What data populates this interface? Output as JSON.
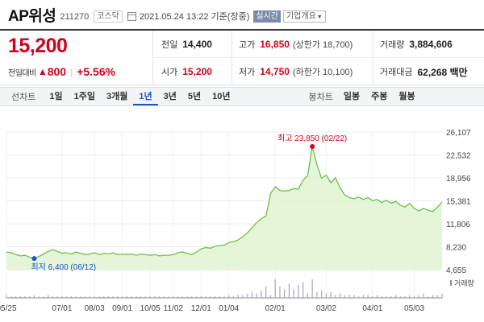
{
  "header": {
    "stock_name": "AP위성",
    "stock_code": "211270",
    "market": "코스닥",
    "timestamp": "2021.05.24 13:22 기준(장중)",
    "realtime_label": "실시간",
    "company_info_label": "기업개요",
    "calendar_icon": "calendar-icon",
    "caret_icon": "caret-down-icon"
  },
  "price": {
    "current": "15,200",
    "change_label": "전일대비",
    "change_icon": "up-triangle-icon",
    "change": "800",
    "change_pct": "+5.56%",
    "up_color": "#d0021b",
    "down_color": "#1a52d1"
  },
  "stats": {
    "prev_close_label": "전일",
    "prev_close": "14,400",
    "high_label": "고가",
    "high": "16,850",
    "high_limit_label": "(상한가 18,700)",
    "volume_label": "거래량",
    "volume": "3,884,606",
    "open_label": "시가",
    "open": "15,200",
    "low_label": "저가",
    "low": "14,750",
    "low_limit_label": "(하한가 10,100)",
    "trade_value_label": "거래대금",
    "trade_value": "62,268 백만"
  },
  "tabs": {
    "line_chart_label": "선차트",
    "periods": [
      "1일",
      "1주일",
      "3개월",
      "1년",
      "3년",
      "5년",
      "10년"
    ],
    "active_period": "1년",
    "candle_chart_label": "봉차트",
    "candle_periods": [
      "일봉",
      "주봉",
      "월봉"
    ]
  },
  "chart_data": {
    "type": "area",
    "color": "#6cc04a",
    "fill_color": "#dff5d0",
    "y_ticks": [
      "26,107",
      "22,532",
      "18,956",
      "15,381",
      "11,806",
      "8,230",
      "4,655"
    ],
    "ylim": [
      4655,
      26107
    ],
    "x_ticks": [
      "05/25",
      "07/01",
      "08/03",
      "09/01",
      "10/05",
      "11/02",
      "12/01",
      "01/04",
      "02/01",
      "03/02",
      "04/01",
      "05/03"
    ],
    "max_label": "최고 23,850 (02/22)",
    "min_label": "최저 6,400 (06/12)",
    "volume_label": "거래량",
    "x": [
      "05/25",
      "05/27",
      "05/31",
      "06/03",
      "06/07",
      "06/10",
      "06/12",
      "06/15",
      "06/18",
      "06/22",
      "06/25",
      "06/29",
      "07/01",
      "07/06",
      "07/10",
      "07/15",
      "07/20",
      "07/24",
      "07/29",
      "08/03",
      "08/07",
      "08/12",
      "08/18",
      "08/24",
      "08/28",
      "09/01",
      "09/07",
      "09/11",
      "09/17",
      "09/23",
      "09/29",
      "10/05",
      "10/09",
      "10/15",
      "10/21",
      "10/27",
      "11/02",
      "11/06",
      "11/12",
      "11/18",
      "11/24",
      "11/30",
      "12/01",
      "12/07",
      "12/11",
      "12/15",
      "12/21",
      "12/28",
      "01/04",
      "01/08",
      "01/12",
      "01/14",
      "01/18",
      "01/20",
      "01/22",
      "01/25",
      "01/27",
      "01/29",
      "02/01",
      "02/03",
      "02/05",
      "02/08",
      "02/10",
      "02/15",
      "02/17",
      "02/19",
      "02/22",
      "02/24",
      "02/26",
      "03/02",
      "03/04",
      "03/08",
      "03/10",
      "03/12",
      "03/16",
      "03/18",
      "03/22",
      "03/25",
      "03/29",
      "04/01",
      "04/05",
      "04/08",
      "04/12",
      "04/15",
      "04/19",
      "04/22",
      "04/26",
      "04/29",
      "05/03",
      "05/07",
      "05/11",
      "05/14",
      "05/18",
      "05/21",
      "05/24"
    ],
    "values": [
      7400,
      7300,
      7000,
      6800,
      6900,
      6600,
      6400,
      6700,
      7100,
      7500,
      7800,
      7500,
      7200,
      7300,
      7100,
      7400,
      7200,
      7000,
      7100,
      7300,
      7000,
      7200,
      7100,
      7300,
      7000,
      7100,
      7000,
      7100,
      6900,
      7100,
      7000,
      6900,
      7000,
      6800,
      6900,
      6900,
      7000,
      7300,
      7400,
      7200,
      7000,
      7400,
      7900,
      8100,
      8000,
      8300,
      8400,
      8500,
      8900,
      9000,
      9300,
      9800,
      10400,
      11200,
      12000,
      12600,
      13000,
      16500,
      17600,
      17000,
      16900,
      17000,
      17300,
      17200,
      18600,
      19300,
      23850,
      21000,
      18900,
      19400,
      18200,
      19000,
      17400,
      16300,
      15900,
      15700,
      16000,
      15600,
      15900,
      15400,
      15600,
      15100,
      15500,
      15000,
      15300,
      14700,
      14400,
      15000,
      14200,
      13800,
      14200,
      13900,
      13700,
      14400,
      15200
    ],
    "volumes": [
      2,
      1,
      1,
      1,
      1,
      1,
      2,
      1,
      1,
      2,
      1,
      1,
      1,
      1,
      1,
      1,
      1,
      1,
      1,
      1,
      1,
      1,
      1,
      1,
      1,
      1,
      1,
      1,
      1,
      1,
      1,
      1,
      1,
      1,
      1,
      1,
      1,
      1,
      1,
      1,
      1,
      1,
      1,
      1,
      1,
      1,
      1,
      1,
      2,
      1,
      2,
      2,
      3,
      4,
      3,
      5,
      8,
      2,
      13,
      8,
      6,
      10,
      6,
      9,
      11,
      3,
      13,
      4,
      5,
      3,
      4,
      2,
      3,
      2,
      2,
      2,
      1,
      2,
      2,
      1,
      2,
      1,
      1,
      1,
      2,
      1,
      1,
      2,
      1,
      2,
      3,
      1,
      2,
      2,
      3
    ]
  }
}
